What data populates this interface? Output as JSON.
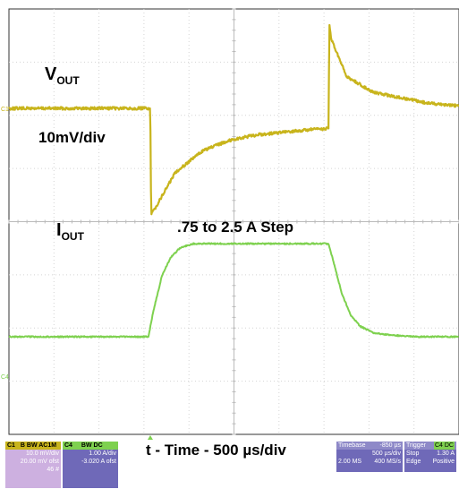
{
  "chart_data": {
    "type": "line",
    "title": "",
    "xlabel": "t - Time - 500 µs/div",
    "grid": true,
    "divisions": {
      "x": 10,
      "y": 8
    },
    "x_unit": "µs",
    "x_range": [
      -3350,
      1650
    ],
    "series": [
      {
        "name": "VOUT",
        "channel": "C1",
        "color": "#c8b41c",
        "units_per_div": "10mV/div",
        "x": [
          -3350,
          -1780,
          -1770,
          -1700,
          -1500,
          -1200,
          -900,
          -600,
          -300,
          0,
          200,
          210,
          230,
          400,
          700,
          1000,
          1300,
          1650
        ],
        "y": [
          0.0,
          0.0,
          -20.0,
          -18.0,
          -12.0,
          -8.0,
          -6.0,
          -5.0,
          -4.5,
          -4.0,
          -3.8,
          16.0,
          13.0,
          6.0,
          3.0,
          2.0,
          1.0,
          0.5
        ]
      },
      {
        "name": "IOUT",
        "channel": "C4",
        "color": "#7ed14f",
        "units_per_div": "1.00 A/div",
        "x": [
          -3350,
          -1800,
          -1750,
          -1650,
          -1550,
          -1450,
          -1300,
          -1100,
          0,
          200,
          250,
          350,
          450,
          550,
          700,
          900,
          1200,
          1650
        ],
        "y": [
          0.75,
          0.75,
          1.2,
          1.9,
          2.25,
          2.42,
          2.5,
          2.5,
          2.5,
          2.5,
          2.2,
          1.55,
          1.15,
          0.95,
          0.82,
          0.78,
          0.75,
          0.75
        ]
      }
    ],
    "annotations": {
      "vout_label": "V",
      "vout_sub": "OUT",
      "vout_scale": "10mV/div",
      "iout_label": "I",
      "iout_sub": "OUT",
      "step_label": ".75 to 2.5 A Step"
    },
    "markers": {
      "c1": "C1",
      "c4": "C4"
    }
  },
  "panels": {
    "c1": {
      "name": "C1",
      "tags": "B BW AC1M",
      "scale": "10.0 mV/div",
      "offset": "20.00 mV ofst",
      "extra": "46 #"
    },
    "c4": {
      "name": "C4",
      "tags": "BW DC",
      "scale": "1.00 A/div",
      "offset": "-3.020 A ofst"
    },
    "timebase": {
      "label": "Timebase",
      "delay": "-850 µs",
      "scale": "500 µs/div",
      "samples": "2.00 MS",
      "rate": "400 MS/s"
    },
    "trigger": {
      "label": "Trigger",
      "source": "C4 DC",
      "mode": "Stop",
      "level": "1.30 A",
      "type": "Edge",
      "slope": "Positive"
    }
  },
  "colors": {
    "grid": "#d4d4d4",
    "frame": "#333333",
    "panel_c1": "#cdb0e0",
    "panel_c4": "#6f69b8"
  }
}
